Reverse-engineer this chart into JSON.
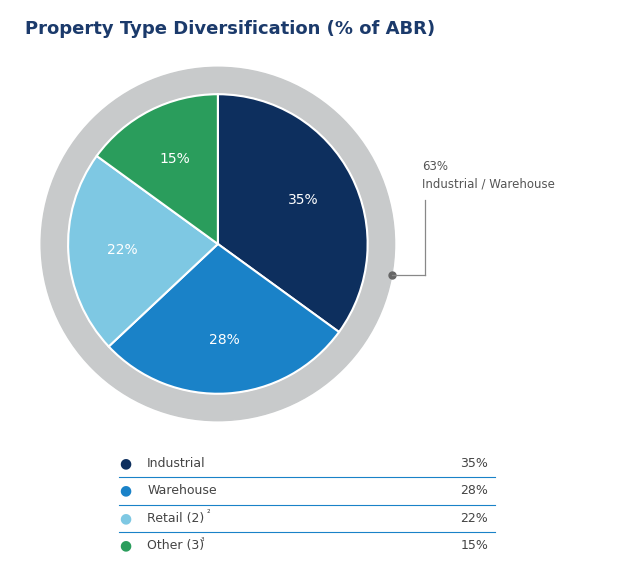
{
  "title": "Property Type Diversification (% of ABR)",
  "title_color": "#1b3a6b",
  "title_fontsize": 13,
  "slices": [
    35,
    28,
    22,
    15
  ],
  "labels": [
    "35%",
    "28%",
    "22%",
    "15%"
  ],
  "colors": [
    "#0d2f5e",
    "#1a82c8",
    "#7ec8e3",
    "#2a9d5c"
  ],
  "background_gray": "#c8cacb",
  "annotation_color": "#666666",
  "legend_labels": [
    "Industrial",
    "Warehouse",
    "Retail (2)",
    "Other (3)"
  ],
  "legend_values": [
    "35%",
    "28%",
    "22%",
    "15%"
  ],
  "legend_colors": [
    "#0d2f5e",
    "#1a82c8",
    "#7ec8e3",
    "#2a9d5c"
  ],
  "legend_superscripts": [
    "",
    "",
    "²",
    "³"
  ],
  "divider_color": "#1a82c8"
}
